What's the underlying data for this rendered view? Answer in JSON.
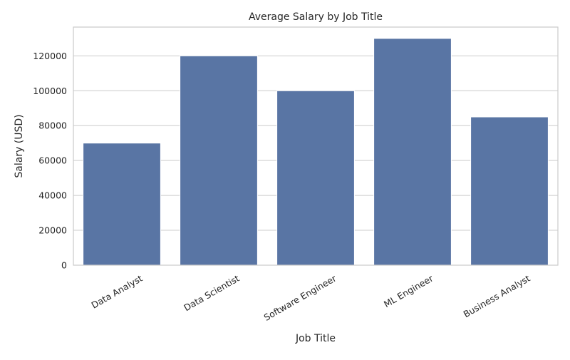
{
  "chart_data": {
    "type": "bar",
    "title": "Average Salary by Job Title",
    "xlabel": "Job Title",
    "ylabel": "Salary (USD)",
    "categories": [
      "Data Analyst",
      "Data Scientist",
      "Software Engineer",
      "ML Engineer",
      "Business Analyst"
    ],
    "values": [
      70000,
      120000,
      100000,
      130000,
      85000
    ],
    "ylim": [
      0,
      136500
    ],
    "yticks": [
      0,
      20000,
      40000,
      60000,
      80000,
      100000,
      120000
    ],
    "ytick_labels": [
      "0",
      "20000",
      "40000",
      "60000",
      "80000",
      "100000",
      "120000"
    ],
    "grid": "horizontal",
    "legend": "none",
    "bar_color": "#5975a4",
    "grid_color": "#cccccc",
    "spine_color": "#cccccc"
  }
}
